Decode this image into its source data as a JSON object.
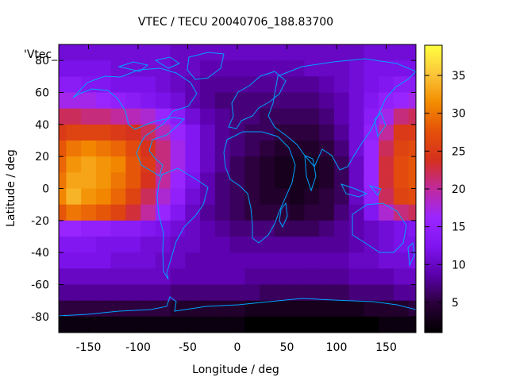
{
  "chart_data": {
    "type": "heatmap",
    "title": "VTEC / TECU 20040706_188.83700",
    "xlabel": "Longitude / deg",
    "ylabel": "Latitude / deg",
    "key_label": "'Vtec_",
    "xlim": [
      -180,
      180
    ],
    "ylim": [
      -90,
      90
    ],
    "xticks": [
      -150,
      -100,
      -50,
      0,
      50,
      100,
      150
    ],
    "yticks": [
      -80,
      -60,
      -40,
      -20,
      0,
      20,
      40,
      60,
      80
    ],
    "colorbar": {
      "range": [
        1,
        39
      ],
      "ticks": [
        5,
        10,
        15,
        20,
        25,
        30,
        35
      ]
    },
    "colormap": [
      "#000000",
      "#2a0038",
      "#5a00aa",
      "#7f14f0",
      "#9a26ff",
      "#c02a9e",
      "#d5301e",
      "#e5500a",
      "#f38c00",
      "#fbc63a",
      "#ffff40"
    ],
    "vtec_grid": {
      "lon_step_deg": 15,
      "lat_step_deg": 10,
      "lat": [
        85,
        75,
        65,
        55,
        45,
        35,
        25,
        15,
        5,
        -5,
        -15,
        -25,
        -35,
        -45,
        -55,
        -65,
        -75,
        -85
      ],
      "lon": [
        -180,
        -165,
        -150,
        -135,
        -120,
        -105,
        -90,
        -75,
        -60,
        -45,
        -30,
        -15,
        0,
        15,
        30,
        45,
        60,
        75,
        90,
        105,
        120,
        135,
        150,
        165,
        180
      ],
      "values": [
        [
          11,
          11,
          11,
          11,
          11,
          11,
          11,
          11,
          10,
          10,
          10,
          10,
          10,
          10,
          10,
          10,
          10,
          10,
          10,
          10,
          10,
          11,
          11,
          11,
          11
        ],
        [
          12,
          12,
          12,
          12,
          11,
          11,
          11,
          11,
          10,
          10,
          9,
          9,
          9,
          9,
          9,
          9,
          9,
          10,
          10,
          10,
          11,
          12,
          12,
          12,
          12
        ],
        [
          14,
          14,
          13,
          13,
          12,
          12,
          12,
          11,
          10,
          9,
          8,
          8,
          8,
          8,
          8,
          8,
          8,
          8,
          9,
          10,
          11,
          12,
          13,
          14,
          14
        ],
        [
          17,
          17,
          17,
          16,
          15,
          14,
          13,
          12,
          11,
          9,
          8,
          7,
          7,
          7,
          7,
          7,
          7,
          7,
          8,
          9,
          11,
          13,
          15,
          16,
          17
        ],
        [
          22,
          22,
          21,
          21,
          20,
          19,
          18,
          16,
          14,
          11,
          9,
          8,
          7,
          7,
          6,
          6,
          6,
          6,
          7,
          9,
          11,
          14,
          17,
          21,
          22
        ],
        [
          25,
          26,
          26,
          26,
          25,
          24,
          22,
          19,
          16,
          13,
          10,
          8,
          7,
          6,
          6,
          5,
          5,
          5,
          6,
          8,
          11,
          15,
          20,
          25,
          25
        ],
        [
          28,
          30,
          31,
          30,
          29,
          27,
          24,
          21,
          17,
          13,
          10,
          8,
          7,
          6,
          5,
          4,
          4,
          4,
          5,
          7,
          11,
          16,
          22,
          26,
          27
        ],
        [
          29,
          32,
          33,
          32,
          31,
          28,
          25,
          21,
          17,
          13,
          10,
          8,
          6,
          5,
          4,
          3,
          3,
          3,
          4,
          6,
          10,
          16,
          23,
          27,
          28
        ],
        [
          30,
          33,
          33,
          32,
          30,
          28,
          24,
          20,
          16,
          12,
          9,
          7,
          6,
          5,
          4,
          3,
          3,
          3,
          4,
          6,
          10,
          16,
          23,
          27,
          28
        ],
        [
          31,
          34,
          32,
          31,
          29,
          26,
          22,
          18,
          15,
          11,
          9,
          7,
          6,
          5,
          4,
          4,
          3,
          4,
          5,
          6,
          10,
          15,
          22,
          26,
          27
        ],
        [
          28,
          30,
          29,
          28,
          26,
          23,
          20,
          16,
          13,
          10,
          8,
          7,
          6,
          5,
          5,
          5,
          4,
          5,
          5,
          7,
          9,
          13,
          18,
          21,
          22
        ],
        [
          16,
          16,
          15,
          15,
          14,
          14,
          13,
          12,
          11,
          10,
          9,
          8,
          7,
          7,
          7,
          6,
          6,
          6,
          7,
          8,
          9,
          10,
          11,
          12,
          13
        ],
        [
          13,
          13,
          13,
          12,
          12,
          12,
          11,
          11,
          10,
          10,
          9,
          9,
          8,
          8,
          8,
          8,
          8,
          8,
          8,
          8,
          9,
          10,
          11,
          12,
          12
        ],
        [
          12,
          12,
          12,
          12,
          11,
          11,
          11,
          10,
          10,
          9,
          9,
          9,
          9,
          9,
          9,
          9,
          9,
          9,
          9,
          9,
          10,
          10,
          11,
          11,
          12
        ],
        [
          10,
          10,
          10,
          10,
          10,
          10,
          10,
          10,
          9,
          9,
          9,
          9,
          9,
          8,
          8,
          8,
          8,
          8,
          8,
          8,
          9,
          9,
          9,
          10,
          10
        ],
        [
          8,
          8,
          8,
          8,
          8,
          8,
          8,
          8,
          7,
          7,
          7,
          7,
          7,
          7,
          6,
          6,
          6,
          6,
          6,
          6,
          7,
          7,
          7,
          8,
          8
        ],
        [
          5,
          5,
          5,
          5,
          5,
          5,
          5,
          5,
          4,
          4,
          4,
          4,
          4,
          3,
          3,
          3,
          3,
          3,
          3,
          3,
          3,
          4,
          4,
          4,
          5
        ],
        [
          2,
          2,
          2,
          2,
          2,
          2,
          2,
          2,
          2,
          2,
          2,
          2,
          2,
          1,
          1,
          1,
          1,
          1,
          1,
          1,
          1,
          1,
          2,
          2,
          2
        ]
      ]
    }
  }
}
